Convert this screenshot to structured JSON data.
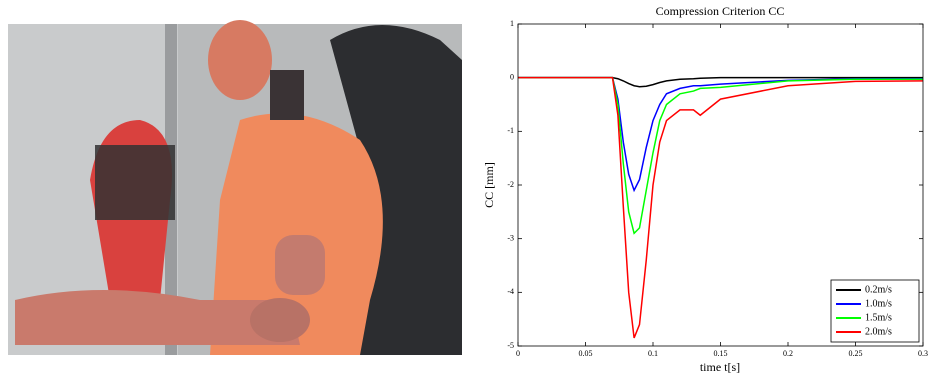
{
  "chart_data": {
    "type": "line",
    "title": "Compression Criterion CC",
    "x_label": "time t[s]",
    "y_label": "CC [mm]",
    "x": [
      0,
      0.07,
      0.074,
      0.078,
      0.082,
      0.086,
      0.09,
      0.095,
      0.1,
      0.105,
      0.11,
      0.12,
      0.13,
      0.135,
      0.15,
      0.2,
      0.25,
      0.3
    ],
    "series": [
      {
        "name": "0.2m/s",
        "color": "#000000",
        "values": [
          0,
          0,
          -0.02,
          -0.06,
          -0.11,
          -0.15,
          -0.17,
          -0.16,
          -0.13,
          -0.09,
          -0.06,
          -0.03,
          -0.02,
          -0.01,
          0,
          0,
          0,
          0
        ]
      },
      {
        "name": "1.0m/s",
        "color": "#0000ff",
        "values": [
          0,
          0,
          -0.4,
          -1.2,
          -1.8,
          -2.1,
          -1.9,
          -1.3,
          -0.8,
          -0.5,
          -0.3,
          -0.2,
          -0.15,
          -0.15,
          -0.12,
          -0.05,
          -0.02,
          -0.02
        ]
      },
      {
        "name": "1.5m/s",
        "color": "#00ff00",
        "values": [
          0,
          0,
          -0.5,
          -1.6,
          -2.5,
          -2.9,
          -2.8,
          -2.1,
          -1.4,
          -0.8,
          -0.5,
          -0.3,
          -0.25,
          -0.2,
          -0.18,
          -0.06,
          -0.03,
          -0.03
        ]
      },
      {
        "name": "2.0m/s",
        "color": "#ff0000",
        "values": [
          0,
          0,
          -0.7,
          -2.4,
          -4,
          -4.85,
          -4.6,
          -3.4,
          -2,
          -1.2,
          -0.8,
          -0.6,
          -0.6,
          -0.7,
          -0.4,
          -0.15,
          -0.07,
          -0.06
        ]
      }
    ],
    "xlim": [
      0,
      0.3
    ],
    "xticks": [
      0,
      0.05,
      0.1,
      0.15,
      0.2,
      0.25,
      0.3
    ],
    "ylim": [
      -5,
      1
    ],
    "yticks": [
      -5,
      -4,
      -3,
      -2,
      -1,
      0,
      1
    ],
    "legend": "lower right"
  }
}
